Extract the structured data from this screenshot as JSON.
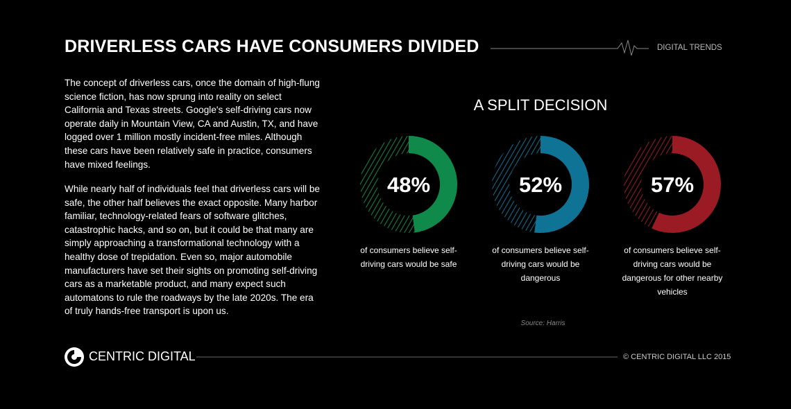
{
  "header": {
    "title": "DRIVERLESS CARS HAVE CONSUMERS DIVIDED",
    "brand": "DIGITAL TRENDS"
  },
  "body": {
    "paragraphs": [
      "The concept of driverless cars, once the domain of high-flung science fiction, has now sprung into reality on select California and Texas streets. Google's self-driving cars now operate daily in Mountain View, CA and Austin, TX, and have logged over 1 million mostly incident-free miles. Although these cars have been relatively safe in practice, consumers have mixed feelings.",
      "While nearly half of individuals feel that driverless cars will be safe, the other half believes the exact opposite. Many harbor familiar, technology-related fears of software glitches, catastrophic hacks, and so on, but it could be that many are simply approaching a transformational technology with a healthy dose of trepidation. Even so, major automobile manufacturers have set their sights on promoting self-driving cars as a marketable product, and many expect such automatons to rule the roadways by the late 2020s. The era of truly hands-free transport is upon us."
    ]
  },
  "section_title": "A SPLIT DECISION",
  "chart_data": [
    {
      "type": "donut",
      "values": [
        48
      ],
      "value_labels": [
        "48%"
      ],
      "color": "#0f8a4a",
      "caption": "of consumers believe self-driving cars would be safe"
    },
    {
      "type": "donut",
      "values": [
        52
      ],
      "value_labels": [
        "52%"
      ],
      "color": "#0e7394",
      "caption": "of consumers believe self-driving cars would be dangerous"
    },
    {
      "type": "donut",
      "values": [
        57
      ],
      "value_labels": [
        "57%"
      ],
      "color": "#9b1b25",
      "caption": "of consumers believe self-driving cars would be dangerous for other nearby vehicles"
    }
  ],
  "source": "Source: Harris",
  "footer": {
    "logo": "CENTRIC DIGITAL",
    "copyright": "© CENTRIC DIGITAL LLC 2015"
  }
}
